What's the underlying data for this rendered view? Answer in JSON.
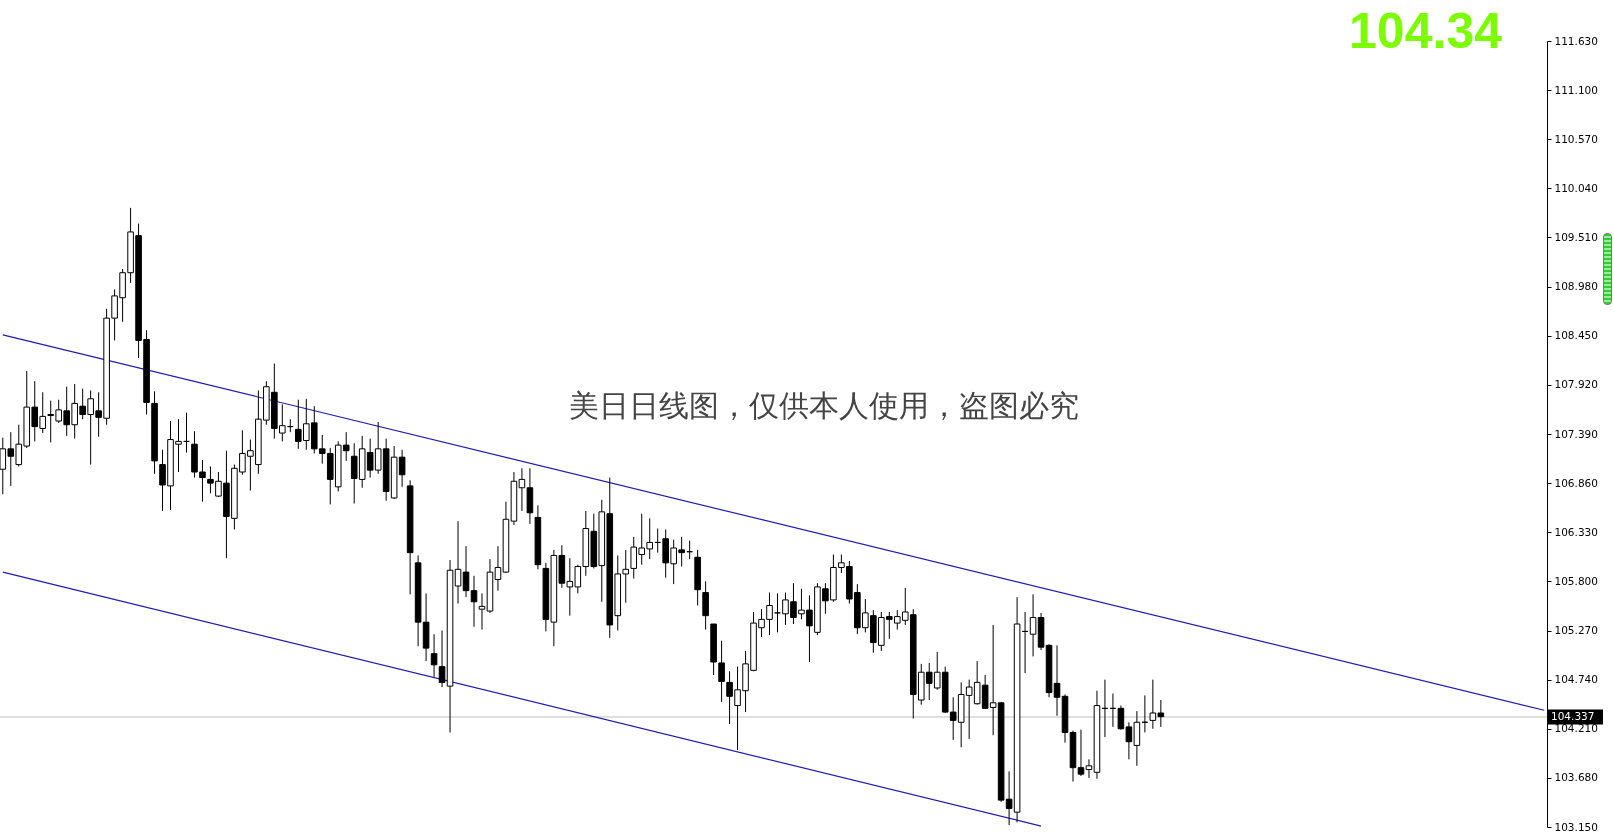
{
  "chart_data": {
    "type": "candlestick",
    "categories": [
      null,
      null,
      null,
      null,
      null,
      null,
      null,
      null,
      null,
      null,
      null,
      null,
      null,
      null,
      null,
      null,
      null,
      null,
      null,
      null,
      null,
      null,
      null,
      null,
      null,
      null,
      null,
      null,
      null,
      null,
      null,
      null,
      null,
      null,
      null,
      null,
      null,
      null,
      null,
      null,
      null,
      null,
      null,
      null,
      null,
      null,
      null,
      null,
      null,
      null,
      null,
      null,
      null,
      null,
      null,
      null,
      null,
      null,
      null,
      null,
      null,
      null,
      null,
      null,
      null,
      null,
      null,
      null,
      null,
      null,
      null,
      null,
      null,
      null,
      null,
      null,
      null,
      null,
      null,
      null,
      null,
      null,
      null,
      null,
      null,
      null,
      null,
      null,
      null,
      null,
      null,
      null,
      null,
      null,
      null,
      null,
      null,
      null,
      null,
      null,
      null,
      null,
      null,
      null,
      null,
      null,
      null,
      null,
      null,
      null,
      null,
      null,
      null,
      null,
      null,
      null,
      null,
      null,
      null,
      null,
      null,
      null,
      null,
      null,
      null,
      null,
      null,
      null,
      null,
      null,
      null,
      null,
      null,
      null,
      null,
      null,
      null,
      null,
      null,
      null,
      null,
      null,
      null,
      null,
      null,
      null,
      null,
      null,
      null,
      null,
      null,
      null,
      null,
      null,
      null,
      null,
      null,
      null,
      null,
      null,
      null,
      null,
      null,
      null,
      null,
      null,
      null,
      null,
      null,
      null,
      null,
      null,
      null,
      null,
      null,
      null,
      null,
      null,
      null,
      null,
      null,
      null,
      null,
      null,
      null,
      null,
      null,
      null,
      null,
      null,
      null,
      null,
      null,
      null
    ],
    "ohlc": [
      [
        107.01,
        107.35,
        106.74,
        107.23
      ],
      [
        107.23,
        107.41,
        106.83,
        107.15
      ],
      [
        107.06,
        107.49,
        107.04,
        107.28
      ],
      [
        107.26,
        108.07,
        107.24,
        107.68
      ],
      [
        107.68,
        107.96,
        107.31,
        107.47
      ],
      [
        107.45,
        107.84,
        107.4,
        107.58
      ],
      [
        107.6,
        107.75,
        107.3,
        107.59
      ],
      [
        107.53,
        107.76,
        107.51,
        107.65
      ],
      [
        107.64,
        107.9,
        107.37,
        107.49
      ],
      [
        107.49,
        107.93,
        107.34,
        107.72
      ],
      [
        107.69,
        107.88,
        107.55,
        107.6
      ],
      [
        107.6,
        107.86,
        107.06,
        107.77
      ],
      [
        107.64,
        107.84,
        107.36,
        107.57
      ],
      [
        107.56,
        108.74,
        107.49,
        108.64
      ],
      [
        108.64,
        108.95,
        108.4,
        108.88
      ],
      [
        108.86,
        109.17,
        108.6,
        109.13
      ],
      [
        109.13,
        109.83,
        109.02,
        109.57
      ],
      [
        109.53,
        109.66,
        108.21,
        108.4
      ],
      [
        108.41,
        108.51,
        107.6,
        107.73
      ],
      [
        107.72,
        107.85,
        106.96,
        107.1
      ],
      [
        107.06,
        107.22,
        106.56,
        106.84
      ],
      [
        106.83,
        107.53,
        106.57,
        107.33
      ],
      [
        107.28,
        107.55,
        106.98,
        107.31
      ],
      [
        107.31,
        107.62,
        107.19,
        107.31
      ],
      [
        107.28,
        107.42,
        106.92,
        106.98
      ],
      [
        106.98,
        107.11,
        106.66,
        106.92
      ],
      [
        106.9,
        107.04,
        106.75,
        106.86
      ],
      [
        106.72,
        106.98,
        106.71,
        106.88
      ],
      [
        106.86,
        107.21,
        106.05,
        106.5
      ],
      [
        106.48,
        107.06,
        106.36,
        107.02
      ],
      [
        106.98,
        107.43,
        106.95,
        107.18
      ],
      [
        107.15,
        107.33,
        106.78,
        107.21
      ],
      [
        107.06,
        107.86,
        106.96,
        107.55
      ],
      [
        107.54,
        107.96,
        107.49,
        107.9
      ],
      [
        107.84,
        108.15,
        107.34,
        107.45
      ],
      [
        107.4,
        107.71,
        107.31,
        107.48
      ],
      [
        107.47,
        107.55,
        107.41,
        107.47
      ],
      [
        107.44,
        107.76,
        107.23,
        107.31
      ],
      [
        107.32,
        107.77,
        107.22,
        107.5
      ],
      [
        107.51,
        107.69,
        107.18,
        107.23
      ],
      [
        107.23,
        107.38,
        107.07,
        107.18
      ],
      [
        107.18,
        107.24,
        106.63,
        106.9
      ],
      [
        106.82,
        107.31,
        106.77,
        107.27
      ],
      [
        107.27,
        107.41,
        107.1,
        107.21
      ],
      [
        107.15,
        107.29,
        106.64,
        106.91
      ],
      [
        106.9,
        107.37,
        106.81,
        107.23
      ],
      [
        107.19,
        107.34,
        106.92,
        107.0
      ],
      [
        107.0,
        107.52,
        106.96,
        107.23
      ],
      [
        107.23,
        107.34,
        106.67,
        106.77
      ],
      [
        106.7,
        107.26,
        106.69,
        107.14
      ],
      [
        107.14,
        107.22,
        106.82,
        106.95
      ],
      [
        106.83,
        106.89,
        105.66,
        106.11
      ],
      [
        106.0,
        106.08,
        105.1,
        105.36
      ],
      [
        105.36,
        105.67,
        104.94,
        105.08
      ],
      [
        105.02,
        105.23,
        104.77,
        104.9
      ],
      [
        104.88,
        105.27,
        104.66,
        104.71
      ],
      [
        104.67,
        106.03,
        104.17,
        105.92
      ],
      [
        105.75,
        106.45,
        105.56,
        105.93
      ],
      [
        105.9,
        106.18,
        105.63,
        105.7
      ],
      [
        105.7,
        105.86,
        105.31,
        105.58
      ],
      [
        105.5,
        105.67,
        105.28,
        105.53
      ],
      [
        105.48,
        106.04,
        105.46,
        105.9
      ],
      [
        105.82,
        106.18,
        105.7,
        105.95
      ],
      [
        105.9,
        106.66,
        105.89,
        106.47
      ],
      [
        106.45,
        106.98,
        106.41,
        106.88
      ],
      [
        106.81,
        107.02,
        106.56,
        106.9
      ],
      [
        106.81,
        107.02,
        106.42,
        106.54
      ],
      [
        106.49,
        106.62,
        105.93,
        105.98
      ],
      [
        105.94,
        106.0,
        105.26,
        105.39
      ],
      [
        105.36,
        106.14,
        105.1,
        106.08
      ],
      [
        106.08,
        106.19,
        105.73,
        105.78
      ],
      [
        105.74,
        106.05,
        105.43,
        105.8
      ],
      [
        105.74,
        105.98,
        105.67,
        105.96
      ],
      [
        105.96,
        106.56,
        105.86,
        106.37
      ],
      [
        106.34,
        106.53,
        105.94,
        105.96
      ],
      [
        105.97,
        106.68,
        105.58,
        106.55
      ],
      [
        106.53,
        106.92,
        105.19,
        105.33
      ],
      [
        105.43,
        106.08,
        105.27,
        105.88
      ],
      [
        105.88,
        106.14,
        105.57,
        105.93
      ],
      [
        105.94,
        106.28,
        105.83,
        106.17
      ],
      [
        106.09,
        106.53,
        105.98,
        106.16
      ],
      [
        106.15,
        106.48,
        106.04,
        106.22
      ],
      [
        106.22,
        106.37,
        106.11,
        106.22
      ],
      [
        106.26,
        106.36,
        105.84,
        106.0
      ],
      [
        105.99,
        106.25,
        105.77,
        106.16
      ],
      [
        106.14,
        106.28,
        105.96,
        106.11
      ],
      [
        106.12,
        106.24,
        106.04,
        106.12
      ],
      [
        106.06,
        106.14,
        105.54,
        105.71
      ],
      [
        105.68,
        105.8,
        105.28,
        105.43
      ],
      [
        105.34,
        105.34,
        104.79,
        104.93
      ],
      [
        104.92,
        105.16,
        104.5,
        104.72
      ],
      [
        104.71,
        104.83,
        104.26,
        104.56
      ],
      [
        104.46,
        104.88,
        103.98,
        104.63
      ],
      [
        104.62,
        105.05,
        104.39,
        104.91
      ],
      [
        104.84,
        105.47,
        104.83,
        105.35
      ],
      [
        105.3,
        105.5,
        105.2,
        105.39
      ],
      [
        105.39,
        105.68,
        105.22,
        105.54
      ],
      [
        105.46,
        105.67,
        105.25,
        105.46
      ],
      [
        105.45,
        105.68,
        105.33,
        105.6
      ],
      [
        105.58,
        105.78,
        105.34,
        105.41
      ],
      [
        105.45,
        105.72,
        105.39,
        105.49
      ],
      [
        105.49,
        105.65,
        104.93,
        105.32
      ],
      [
        105.25,
        105.78,
        105.22,
        105.74
      ],
      [
        105.72,
        105.78,
        105.45,
        105.59
      ],
      [
        105.6,
        106.09,
        105.58,
        105.95
      ],
      [
        105.95,
        106.09,
        105.89,
        106.0
      ],
      [
        105.96,
        106.02,
        105.56,
        105.61
      ],
      [
        105.68,
        105.77,
        105.23,
        105.3
      ],
      [
        105.3,
        105.61,
        105.25,
        105.46
      ],
      [
        105.43,
        105.49,
        105.03,
        105.14
      ],
      [
        105.11,
        105.47,
        105.05,
        105.41
      ],
      [
        105.42,
        105.47,
        105.18,
        105.39
      ],
      [
        105.35,
        105.49,
        105.28,
        105.42
      ],
      [
        105.38,
        105.73,
        105.33,
        105.47
      ],
      [
        105.44,
        105.5,
        104.32,
        104.58
      ],
      [
        104.52,
        104.91,
        104.47,
        104.82
      ],
      [
        104.82,
        104.92,
        104.52,
        104.7
      ],
      [
        104.65,
        105.04,
        104.63,
        104.82
      ],
      [
        104.82,
        104.88,
        104.38,
        104.39
      ],
      [
        104.39,
        104.55,
        104.09,
        104.3
      ],
      [
        104.28,
        104.71,
        104.01,
        104.58
      ],
      [
        104.57,
        104.74,
        104.1,
        104.66
      ],
      [
        104.48,
        104.94,
        104.47,
        104.71
      ],
      [
        104.68,
        104.79,
        104.43,
        104.43
      ],
      [
        104.44,
        105.33,
        104.14,
        104.49
      ],
      [
        104.49,
        104.5,
        103.42,
        103.44
      ],
      [
        103.45,
        103.75,
        103.17,
        103.35
      ],
      [
        103.31,
        105.63,
        103.2,
        105.34
      ],
      [
        105.26,
        105.47,
        104.81,
        105.26
      ],
      [
        105.23,
        105.66,
        104.99,
        105.41
      ],
      [
        105.41,
        105.46,
        105.06,
        105.09
      ],
      [
        105.11,
        105.12,
        104.55,
        104.6
      ],
      [
        104.7,
        105.11,
        104.35,
        104.55
      ],
      [
        104.56,
        104.58,
        104.06,
        104.17
      ],
      [
        104.17,
        104.19,
        103.64,
        103.79
      ],
      [
        103.79,
        104.2,
        103.7,
        103.72
      ],
      [
        103.77,
        103.88,
        103.68,
        103.81
      ],
      [
        103.74,
        104.62,
        103.67,
        104.46
      ],
      [
        104.43,
        104.74,
        104.12,
        104.43
      ],
      [
        104.43,
        104.59,
        104.23,
        104.43
      ],
      [
        104.43,
        104.46,
        104.2,
        104.21
      ],
      [
        104.23,
        104.28,
        103.88,
        104.07
      ],
      [
        104.03,
        104.4,
        103.81,
        104.28
      ],
      [
        104.28,
        104.57,
        104.17,
        104.28
      ],
      [
        104.3,
        104.74,
        104.21,
        104.38
      ],
      [
        104.38,
        104.52,
        104.23,
        104.34
      ],
      null,
      null,
      null,
      null,
      null,
      null,
      null,
      null,
      null,
      null,
      null,
      null,
      null,
      null,
      null,
      null,
      null,
      null,
      null,
      null,
      null,
      null,
      null,
      null,
      null,
      null,
      null,
      null,
      null,
      null,
      null,
      null,
      null,
      null,
      null,
      null,
      null,
      null,
      null,
      null,
      null,
      null,
      null,
      null,
      null,
      null,
      null,
      null
    ],
    "series": [
      {
        "type": "line",
        "color": "#1c1cb4",
        "values": [
          108.46,
          null,
          null,
          null,
          null,
          null,
          null,
          null,
          null,
          null,
          null,
          null,
          null,
          null,
          null,
          null,
          null,
          null,
          null,
          null,
          null,
          null,
          null,
          null,
          null,
          null,
          null,
          null,
          null,
          null,
          null,
          null,
          null,
          null,
          null,
          null,
          null,
          null,
          null,
          null,
          null,
          null,
          null,
          null,
          null,
          null,
          null,
          null,
          null,
          null,
          null,
          null,
          null,
          null,
          null,
          null,
          null,
          null,
          null,
          null,
          null,
          null,
          null,
          null,
          null,
          null,
          null,
          null,
          null,
          null,
          null,
          null,
          null,
          null,
          null,
          null,
          null,
          null,
          null,
          null,
          null,
          null,
          null,
          null,
          null,
          null,
          null,
          null,
          null,
          null,
          null,
          null,
          null,
          null,
          null,
          null,
          null,
          null,
          null,
          null,
          null,
          null,
          null,
          null,
          null,
          null,
          null,
          null,
          null,
          null,
          null,
          null,
          null,
          null,
          null,
          null,
          null,
          null,
          null,
          null,
          null,
          null,
          null,
          null,
          null,
          null,
          null,
          null,
          null,
          null,
          null,
          null,
          null,
          null,
          null,
          null,
          null,
          null,
          null,
          null,
          null,
          null,
          null,
          null,
          null,
          null,
          null,
          null,
          null,
          null,
          null,
          null,
          null,
          null,
          null,
          null,
          null,
          null,
          null,
          null,
          null,
          null,
          null,
          null,
          null,
          null,
          null,
          null,
          null,
          null,
          null,
          null,
          null,
          null,
          null,
          null,
          null,
          null,
          null,
          null,
          null,
          null,
          null,
          null,
          null,
          null,
          null,
          null,
          null,
          null,
          null,
          null,
          null,
          104.41
        ]
      },
      {
        "type": "line",
        "color": "#1c1cb4",
        "values": [
          105.9,
          null,
          null,
          null,
          null,
          null,
          null,
          null,
          null,
          null,
          null,
          null,
          null,
          null,
          null,
          null,
          null,
          null,
          null,
          null,
          null,
          null,
          null,
          null,
          null,
          null,
          null,
          null,
          null,
          null,
          null,
          null,
          null,
          null,
          null,
          null,
          null,
          null,
          null,
          null,
          null,
          null,
          null,
          null,
          null,
          null,
          null,
          null,
          null,
          null,
          null,
          null,
          null,
          null,
          null,
          null,
          null,
          null,
          null,
          null,
          null,
          null,
          null,
          null,
          null,
          null,
          null,
          null,
          null,
          null,
          null,
          null,
          null,
          null,
          null,
          null,
          null,
          null,
          null,
          null,
          null,
          null,
          null,
          null,
          null,
          null,
          null,
          null,
          null,
          null,
          null,
          null,
          null,
          null,
          null,
          null,
          null,
          null,
          null,
          null,
          null,
          null,
          null,
          null,
          null,
          null,
          null,
          null,
          null,
          null,
          null,
          null,
          null,
          null,
          null,
          null,
          null,
          null,
          null,
          null,
          null,
          null,
          null,
          null,
          null,
          null,
          null,
          null,
          null,
          null,
          103.16,
          null,
          null,
          null,
          null,
          null,
          null,
          null,
          null,
          null,
          null,
          null,
          null,
          null,
          null,
          null,
          null,
          null,
          null,
          null,
          null,
          null,
          null,
          null,
          null,
          null,
          null,
          null,
          null,
          null,
          null,
          null,
          null,
          null,
          null,
          null,
          null,
          null,
          null,
          null,
          null,
          null,
          null,
          null,
          null,
          null,
          null,
          null,
          null,
          null,
          null,
          null,
          null,
          null,
          null,
          null,
          null,
          null,
          null,
          null,
          null,
          null,
          null,
          null
        ]
      }
    ],
    "ylim": [
      103.15,
      111.63
    ],
    "yticks": [
      {
        "value": 103.15,
        "label": "103.150"
      },
      {
        "value": 103.68,
        "label": "103.680"
      },
      {
        "value": 104.21,
        "label": "104.210"
      },
      {
        "value": 104.74,
        "label": "104.740"
      },
      {
        "value": 105.27,
        "label": "105.270"
      },
      {
        "value": 105.8,
        "label": "105.800"
      },
      {
        "value": 106.33,
        "label": "106.330"
      },
      {
        "value": 106.86,
        "label": "106.860"
      },
      {
        "value": 107.39,
        "label": "107.390"
      },
      {
        "value": 107.92,
        "label": "107.920"
      },
      {
        "value": 108.45,
        "label": "108.450"
      },
      {
        "value": 108.98,
        "label": "108.980"
      },
      {
        "value": 109.51,
        "label": "109.510"
      },
      {
        "value": 110.04,
        "label": "110.040"
      },
      {
        "value": 110.57,
        "label": "110.570"
      },
      {
        "value": 111.1,
        "label": "111.100"
      },
      {
        "value": 111.63,
        "label": "111.630"
      }
    ],
    "tick_labels": "y",
    "ref_lines": [
      {
        "axis": "y",
        "value": 104.337,
        "label": "104.337",
        "color": "#c0c0c0"
      }
    ],
    "annotations": [
      "104.34",
      "美日日线图，仅供本人使用，盗图必究"
    ]
  }
}
